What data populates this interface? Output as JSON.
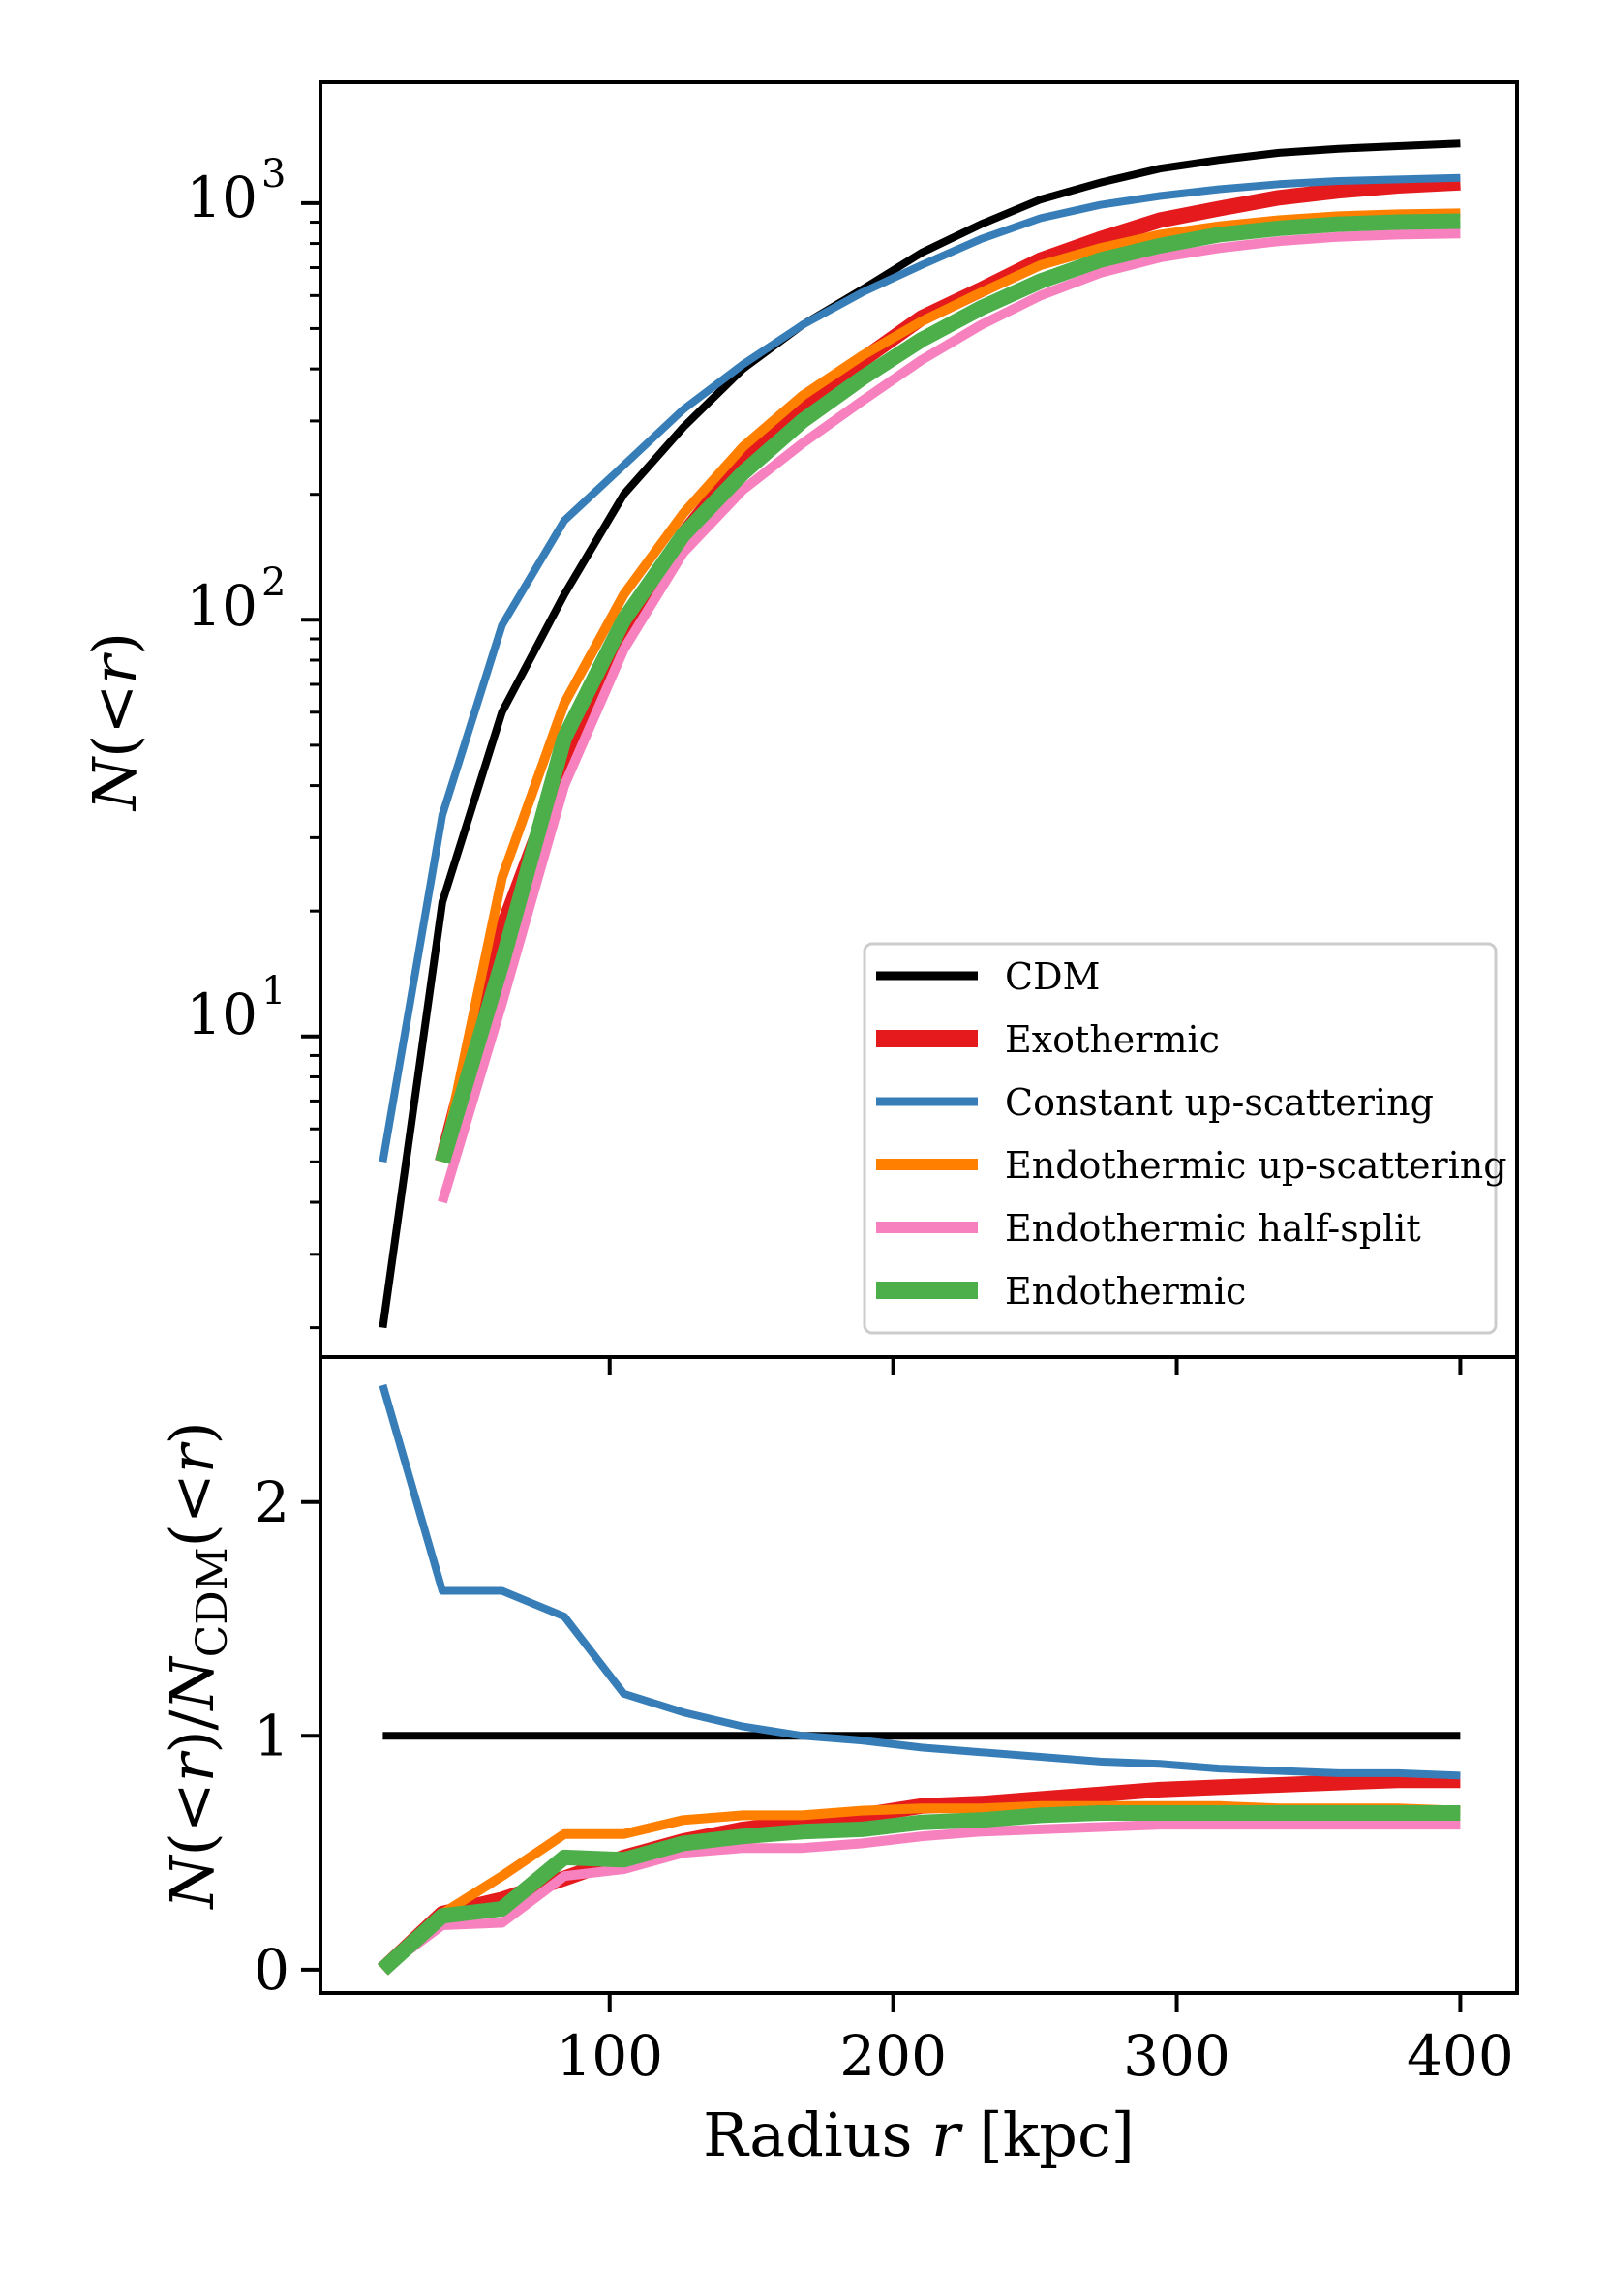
{
  "chart_data": [
    {
      "type": "line",
      "panel": "top",
      "ylabel": "N(<r)",
      "yscale": "log",
      "ylim": [
        1.7,
        1950
      ],
      "xlim": [
        -2,
        420
      ],
      "ytick_labels": [
        {
          "value": 10,
          "base": "10",
          "exp": "1"
        },
        {
          "value": 100,
          "base": "10",
          "exp": "2"
        },
        {
          "value": 1000,
          "base": "10",
          "exp": "3"
        }
      ],
      "legend": {
        "placement": "lower-right"
      },
      "x": [
        20,
        41,
        62,
        84,
        105,
        126,
        147,
        168,
        189,
        210,
        231,
        252,
        273,
        294,
        315,
        336,
        357,
        378,
        400
      ],
      "series": [
        {
          "name": "CDM",
          "color": "#000000",
          "values": [
            2,
            21,
            60,
            115,
            200,
            290,
            400,
            510,
            620,
            760,
            890,
            1020,
            1120,
            1210,
            1270,
            1320,
            1350,
            1370,
            1390
          ]
        },
        {
          "name": "Exothermic",
          "color": "#e41a1c",
          "values": [
            null,
            5,
            18,
            45,
            95,
            160,
            240,
            330,
            420,
            530,
            620,
            730,
            820,
            910,
            970,
            1030,
            1070,
            1100,
            1120
          ]
        },
        {
          "name": "Constant up-scattering",
          "color": "#377eb8",
          "values": [
            5,
            34,
            97,
            173,
            235,
            320,
            410,
            510,
            610,
            710,
            820,
            920,
            990,
            1040,
            1080,
            1110,
            1130,
            1140,
            1150
          ]
        },
        {
          "name": "Endothermic up-scattering",
          "color": "#ff7f00",
          "values": [
            null,
            5,
            24,
            63,
            115,
            180,
            260,
            345,
            430,
            520,
            610,
            710,
            780,
            840,
            880,
            910,
            930,
            940,
            945
          ]
        },
        {
          "name": "Endothermic half-split",
          "color": "#f781bf",
          "values": [
            null,
            4,
            12,
            40,
            85,
            145,
            205,
            265,
            335,
            420,
            510,
            600,
            680,
            740,
            780,
            810,
            830,
            840,
            845
          ]
        },
        {
          "name": "Endothermic",
          "color": "#4daf4a",
          "values": [
            null,
            5,
            15,
            52,
            100,
            160,
            225,
            300,
            380,
            470,
            560,
            650,
            730,
            790,
            840,
            870,
            890,
            900,
            905
          ]
        }
      ]
    },
    {
      "type": "line",
      "panel": "bottom",
      "ylabel": "N(<r)/N_CDM(<r)",
      "xlabel": "Radius r [kpc]",
      "ylim": [
        -0.1,
        2.62
      ],
      "xlim": [
        -2,
        420
      ],
      "xticks": [
        100,
        200,
        300,
        400
      ],
      "yticks": [
        0,
        1,
        2
      ],
      "x": [
        20,
        41,
        62,
        84,
        105,
        126,
        147,
        168,
        189,
        210,
        231,
        252,
        273,
        294,
        315,
        336,
        357,
        378,
        400
      ],
      "series": [
        {
          "name": "CDM",
          "color": "#000000",
          "values": [
            1,
            1,
            1,
            1,
            1,
            1,
            1,
            1,
            1,
            1,
            1,
            1,
            1,
            1,
            1,
            1,
            1,
            1,
            1
          ]
        },
        {
          "name": "Exothermic",
          "color": "#e41a1c",
          "values": [
            0,
            0.24,
            0.3,
            0.39,
            0.48,
            0.55,
            0.6,
            0.63,
            0.66,
            0.7,
            0.71,
            0.73,
            0.75,
            0.77,
            0.78,
            0.79,
            0.8,
            0.81,
            0.81
          ]
        },
        {
          "name": "Constant up-scattering",
          "color": "#377eb8",
          "values": [
            2.5,
            1.62,
            1.62,
            1.51,
            1.18,
            1.1,
            1.04,
            1.0,
            0.98,
            0.95,
            0.93,
            0.91,
            0.89,
            0.88,
            0.86,
            0.85,
            0.84,
            0.84,
            0.83
          ]
        },
        {
          "name": "Endothermic up-scattering",
          "color": "#ff7f00",
          "values": [
            0,
            0.24,
            0.4,
            0.58,
            0.58,
            0.64,
            0.66,
            0.66,
            0.68,
            0.69,
            0.69,
            0.7,
            0.7,
            0.7,
            0.7,
            0.69,
            0.69,
            0.69,
            0.68
          ]
        },
        {
          "name": "Endothermic half-split",
          "color": "#f781bf",
          "values": [
            0,
            0.19,
            0.2,
            0.4,
            0.43,
            0.5,
            0.52,
            0.52,
            0.54,
            0.57,
            0.59,
            0.6,
            0.61,
            0.62,
            0.62,
            0.62,
            0.62,
            0.62,
            0.62
          ]
        },
        {
          "name": "Endothermic",
          "color": "#4daf4a",
          "values": [
            0,
            0.23,
            0.26,
            0.48,
            0.47,
            0.54,
            0.57,
            0.59,
            0.6,
            0.63,
            0.64,
            0.66,
            0.67,
            0.67,
            0.67,
            0.67,
            0.67,
            0.67,
            0.67
          ]
        }
      ]
    }
  ]
}
